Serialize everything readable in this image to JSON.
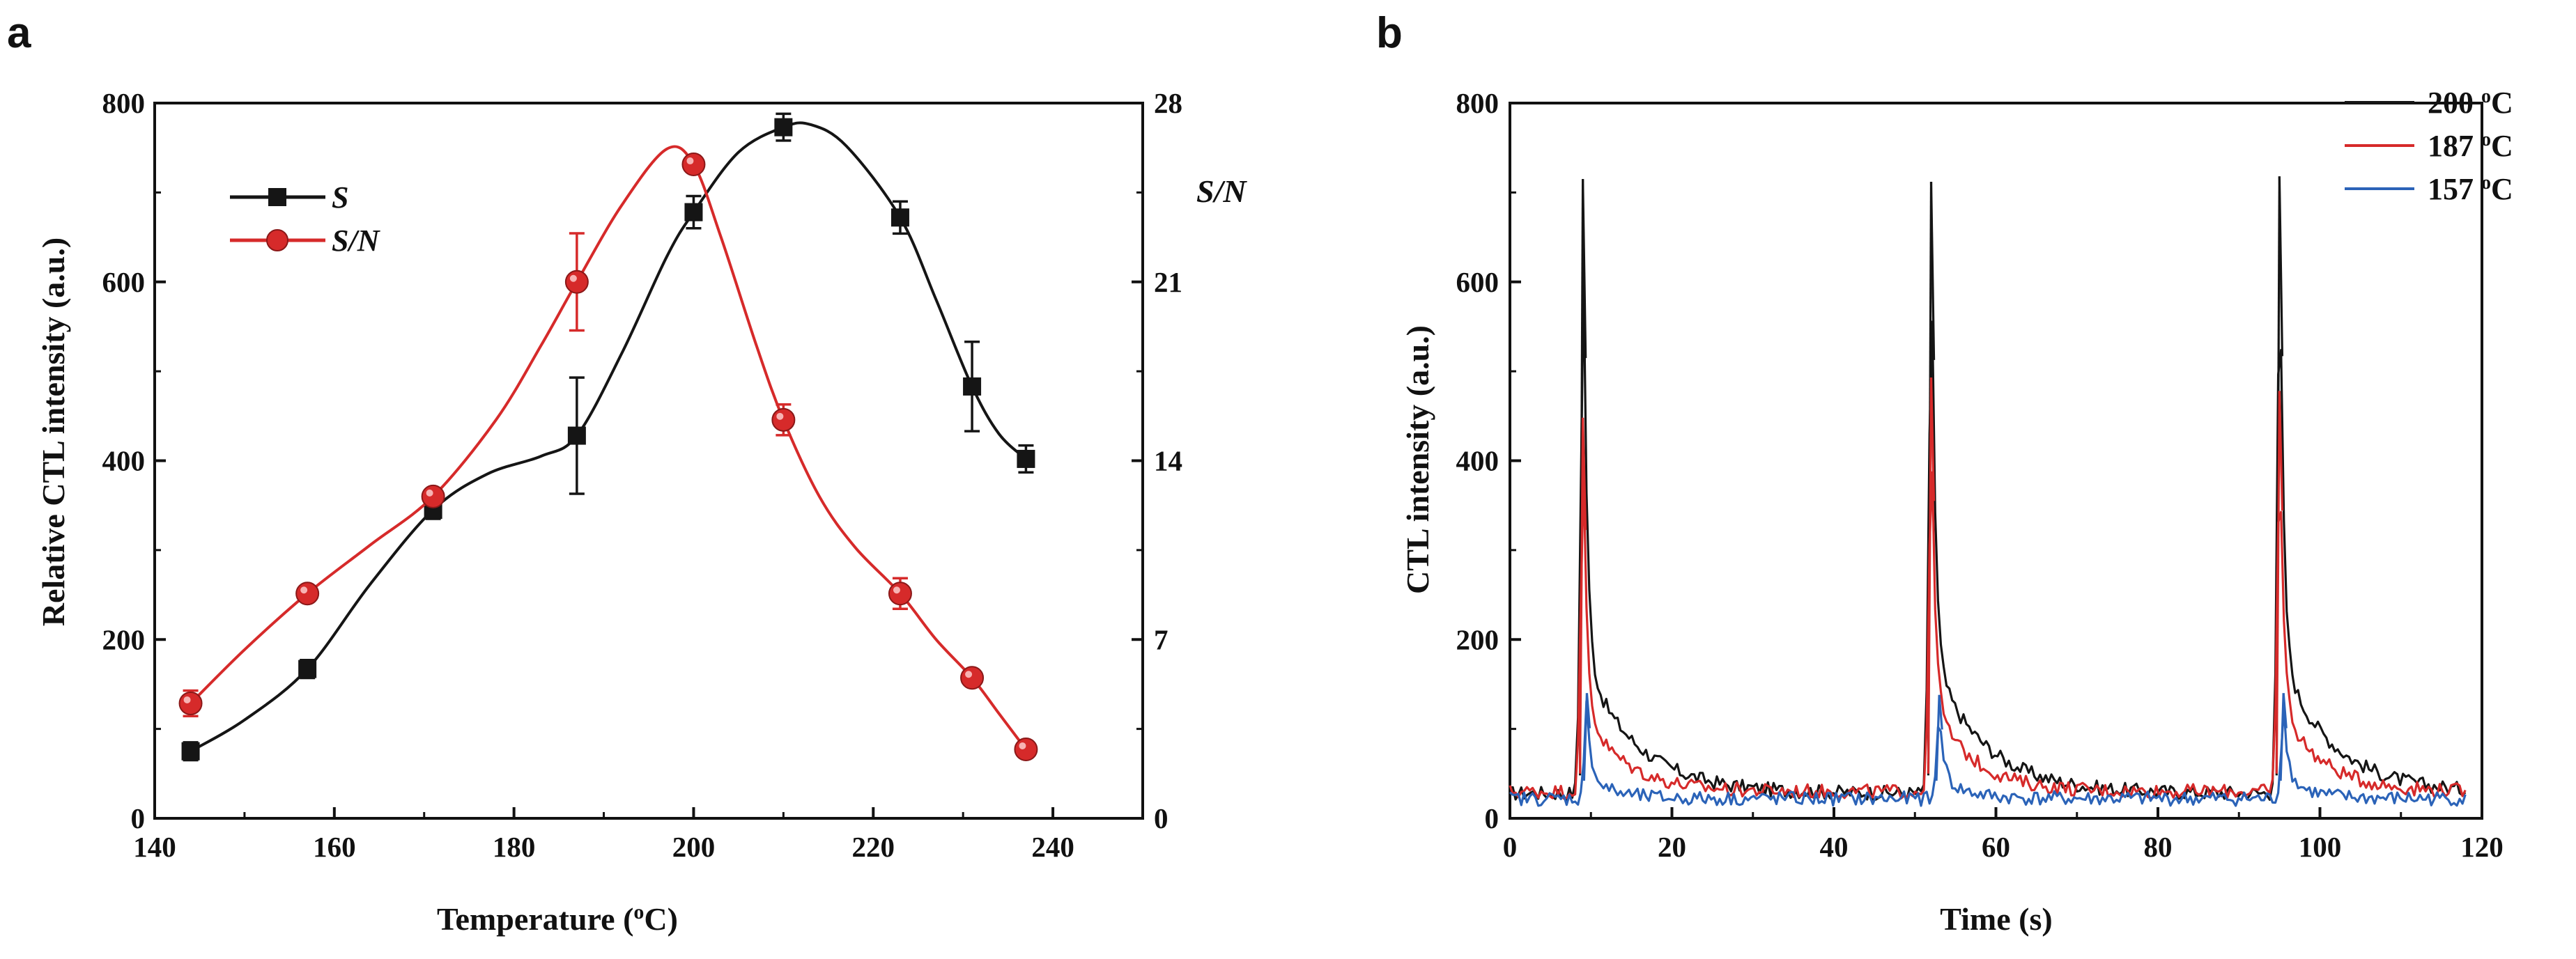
{
  "colors": {
    "black": "#151515",
    "red": "#d62a2a",
    "blue": "#2b63b8",
    "darkred": "#8a1818"
  },
  "chart_data": [
    {
      "panel_label": "a",
      "type": "line",
      "xlabel": "Temperature (",
      "xlabel_sup": "o",
      "xlabel_end": "C)",
      "ylabel_left": "Relative CTL intensity (a.u.)",
      "ylabel_right": "S/N",
      "xlim": [
        140,
        250
      ],
      "xticks": [
        "140",
        "160",
        "180",
        "200",
        "220",
        "240"
      ],
      "ylim_left": [
        0,
        800
      ],
      "yticks_left": [
        "0",
        "200",
        "400",
        "600",
        "800"
      ],
      "ylim_right": [
        0,
        28
      ],
      "yticks_right": [
        "0",
        "7",
        "14",
        "21",
        "28"
      ],
      "series": [
        {
          "name": "S",
          "axis": "left",
          "marker": "square",
          "color": "black",
          "x": [
            144,
            157,
            171,
            187,
            200,
            210,
            223,
            231,
            237
          ],
          "y": [
            75,
            167,
            345,
            428,
            678,
            773,
            672,
            483,
            402
          ],
          "err": [
            10,
            10,
            10,
            65,
            18,
            15,
            18,
            50,
            15
          ],
          "curve": [
            [
              144,
              75
            ],
            [
              150,
              110
            ],
            [
              157,
              167
            ],
            [
              164,
              262
            ],
            [
              171,
              345
            ],
            [
              177,
              385
            ],
            [
              183,
              405
            ],
            [
              187,
              428
            ],
            [
              192,
              520
            ],
            [
              197,
              628
            ],
            [
              200,
              678
            ],
            [
              205,
              745
            ],
            [
              210,
              773
            ],
            [
              213,
              776
            ],
            [
              217,
              752
            ],
            [
              223,
              672
            ],
            [
              227,
              580
            ],
            [
              231,
              483
            ],
            [
              234,
              430
            ],
            [
              237,
              402
            ]
          ]
        },
        {
          "name": "S/N",
          "axis": "right",
          "marker": "circle",
          "color": "red",
          "x": [
            144,
            157,
            171,
            187,
            200,
            210,
            223,
            231,
            237
          ],
          "y": [
            4.5,
            8.8,
            12.6,
            21.0,
            25.6,
            15.6,
            8.8,
            5.5,
            2.7
          ],
          "err": [
            0.5,
            0.3,
            0.3,
            1.9,
            0.3,
            0.6,
            0.6,
            0.3,
            0.3
          ],
          "curve": [
            [
              144,
              4.5
            ],
            [
              150,
              6.6
            ],
            [
              157,
              8.8
            ],
            [
              164,
              10.7
            ],
            [
              171,
              12.6
            ],
            [
              178,
              15.6
            ],
            [
              183,
              18.5
            ],
            [
              187,
              21.0
            ],
            [
              192,
              24.0
            ],
            [
              197,
              26.2
            ],
            [
              200,
              25.6
            ],
            [
              203,
              22.8
            ],
            [
              207,
              18.5
            ],
            [
              210,
              15.6
            ],
            [
              214,
              12.6
            ],
            [
              218,
              10.6
            ],
            [
              223,
              8.8
            ],
            [
              227,
              7.0
            ],
            [
              231,
              5.5
            ],
            [
              234,
              4.1
            ],
            [
              237,
              2.7
            ]
          ]
        }
      ],
      "legend": [
        {
          "label": "S",
          "color": "black",
          "marker": "square"
        },
        {
          "label": "S/N",
          "color": "red",
          "marker": "circle"
        }
      ]
    },
    {
      "panel_label": "b",
      "type": "line",
      "xlabel": "Time (s)",
      "ylabel": "CTL intensity (a.u.)",
      "xlim": [
        0,
        120
      ],
      "xticks": [
        "0",
        "20",
        "40",
        "60",
        "80",
        "100",
        "120"
      ],
      "ylim": [
        0,
        800
      ],
      "yticks": [
        "0",
        "200",
        "400",
        "600",
        "800"
      ],
      "series": [
        {
          "name": "200 oC",
          "label_main": "200 ",
          "label_sup": "o",
          "label_end": "C",
          "color": "black",
          "baseline": 28,
          "peaks": [
            [
              9,
              715
            ],
            [
              52,
              712
            ],
            [
              95,
              718
            ]
          ],
          "tail": 6.5
        },
        {
          "name": "187 oC",
          "label_main": "187 ",
          "label_sup": "o",
          "label_end": "C",
          "color": "red",
          "baseline": 30,
          "peaks": [
            [
              9,
              448
            ],
            [
              52,
              493
            ],
            [
              95,
              478
            ]
          ],
          "tail": 5.0
        },
        {
          "name": "157 oC",
          "label_main": "157 ",
          "label_sup": "o",
          "label_end": "C",
          "color": "blue",
          "baseline": 22,
          "peaks": [
            [
              9.5,
              140
            ],
            [
              53,
              138
            ],
            [
              95.5,
              140
            ]
          ],
          "tail": 3.0
        }
      ]
    }
  ]
}
